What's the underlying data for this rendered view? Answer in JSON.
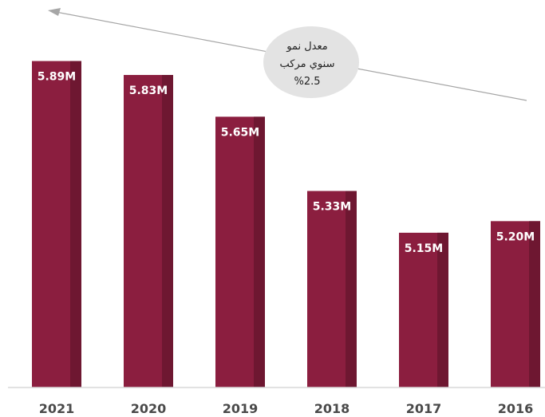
{
  "chart_data": {
    "type": "bar",
    "categories": [
      "2021",
      "2020",
      "2019",
      "2018",
      "2017",
      "2016"
    ],
    "values": [
      5.89,
      5.83,
      5.65,
      5.33,
      5.15,
      5.2
    ],
    "data_labels": [
      "5.89M",
      "5.83M",
      "5.65M",
      "5.33M",
      "5.15M",
      "5.20M"
    ],
    "title": "",
    "xlabel": "",
    "ylabel": "",
    "ylim": [
      4.5,
      6.0
    ],
    "grid": false,
    "legend": "none",
    "annotation": {
      "lines": [
        "معدل نمو",
        "سنوي مركب",
        "%2.5"
      ],
      "arrow": "trend arrow pointing up-left toward 2021"
    },
    "colors": {
      "bar": "#8b1e3f",
      "bar_shade": "#6e1731",
      "axis": "#d9d9d9",
      "arrow": "#a6a6a6",
      "bubble": "#e3e3e3"
    }
  }
}
